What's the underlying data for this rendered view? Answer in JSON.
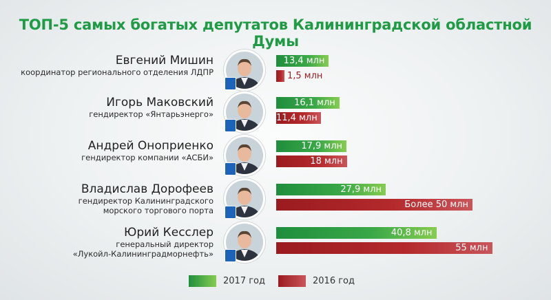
{
  "title": "ТОП-5 самых богатых депутатов Калининградской областной Думы",
  "deputies": [
    {
      "name": "Евгений Мишин",
      "position_lines": [
        "координатор регионального отделения ЛДПР"
      ],
      "party_icon": "ldpr-logo-icon",
      "val2017_label": "13,4 млн",
      "val2016_label": "1,5 млн"
    },
    {
      "name": "Игорь Маковский",
      "position_lines": [
        "гендиректор «Янтарьэнерго»"
      ],
      "party_icon": "united-russia-logo-icon",
      "val2017_label": "16,1 млн",
      "val2016_label": "11,4 млн"
    },
    {
      "name": "Андрей Оноприенко",
      "position_lines": [
        "гендиректор компании «АСБИ»"
      ],
      "party_icon": "united-russia-logo-icon",
      "val2017_label": "17,9 млн",
      "val2016_label": "18 млн"
    },
    {
      "name": "Владислав Дорофеев",
      "position_lines": [
        "гендиректор Калининградского",
        "морского торгового порта"
      ],
      "party_icon": "united-russia-logo-icon",
      "val2017_label": "27,9 млн",
      "val2016_label": "Более 50 млн"
    },
    {
      "name": "Юрий Кесслер",
      "position_lines": [
        "генеральный директор",
        "«Лукойл-Калининградморнефть»"
      ],
      "party_icon": "united-russia-logo-icon",
      "val2017_label": "40,8 млн",
      "val2016_label": "55 млн"
    }
  ],
  "legend": [
    {
      "label": "2017 год",
      "color": "#2f9e44"
    },
    {
      "label": "2016 год",
      "color": "#a6222a"
    }
  ],
  "colors": {
    "title": "#1f9a45",
    "green": "#2f9e44",
    "red": "#a6222a",
    "party_blue": "#1d63b7"
  },
  "chart_data": {
    "type": "bar",
    "orientation": "horizontal",
    "title": "ТОП-5 самых богатых депутатов Калининградской областной Думы",
    "categories": [
      "Евгений Мишин",
      "Игорь Маковский",
      "Андрей Оноприенко",
      "Владислав Дорофеев",
      "Юрий Кесслер"
    ],
    "series": [
      {
        "name": "2017 год",
        "values": [
          13.4,
          16.1,
          17.9,
          27.9,
          40.8
        ],
        "labels": [
          "13,4 млн",
          "16,1 млн",
          "17,9 млн",
          "27,9 млн",
          "40,8 млн"
        ],
        "color": "#2f9e44"
      },
      {
        "name": "2016 год",
        "values": [
          1.5,
          11.4,
          18,
          50,
          55
        ],
        "labels": [
          "1,5 млн",
          "11,4 млн",
          "18 млн",
          "Более 50 млн",
          "55 млн"
        ],
        "color": "#a6222a"
      }
    ],
    "grid": false,
    "legend_position": "bottom"
  }
}
